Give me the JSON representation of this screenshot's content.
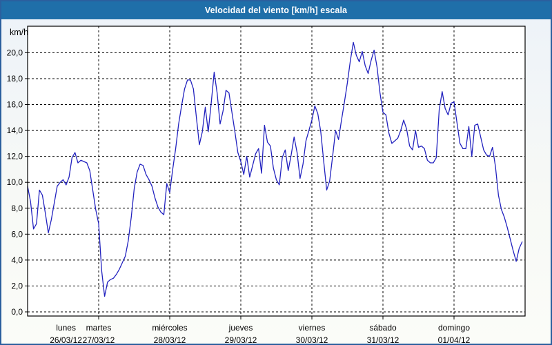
{
  "title": "Velocidad del viento [km/h] escala",
  "colors": {
    "title_bar": "#1f6fa9",
    "window_border": "#2b5f9e",
    "line": "#2222bf",
    "grid": "#000000",
    "plot_background": "#ffffff",
    "page_background": "#f2f5f7"
  },
  "chart_data": {
    "type": "line",
    "title": "Velocidad del viento [km/h] escala",
    "y_axis": {
      "unit": "km/h",
      "min": 0,
      "max": 22,
      "ticks": [
        {
          "label": "20,0",
          "value": 20
        },
        {
          "label": "18,0",
          "value": 18
        },
        {
          "label": "16,0",
          "value": 16
        },
        {
          "label": "14,0",
          "value": 14
        },
        {
          "label": "12,0",
          "value": 12
        },
        {
          "label": "10,0",
          "value": 10
        },
        {
          "label": "8,0",
          "value": 8
        },
        {
          "label": "6,0",
          "value": 6
        },
        {
          "label": "4,0",
          "value": 4
        },
        {
          "label": "2,0",
          "value": 2
        },
        {
          "label": "0,0",
          "value": 0
        }
      ],
      "grid": "dashed"
    },
    "x_axis": {
      "days": [
        {
          "name": "lunes",
          "date": "26/03/12"
        },
        {
          "name": "martes",
          "date": "27/03/12"
        },
        {
          "name": "miércoles",
          "date": "28/03/12"
        },
        {
          "name": "jueves",
          "date": "29/03/12"
        },
        {
          "name": "viernes",
          "date": "30/03/12"
        },
        {
          "name": "sábado",
          "date": "31/03/12"
        },
        {
          "name": "domingo",
          "date": "01/04/12"
        }
      ],
      "grid": "dashed",
      "points_per_day": 24
    },
    "series": [
      {
        "name": "Velocidad del viento",
        "unit": "km/h",
        "values_kmh": [
          9.7,
          8.5,
          6.4,
          6.8,
          9.4,
          9.0,
          7.6,
          6.1,
          7.1,
          8.4,
          9.7,
          10.0,
          10.2,
          9.8,
          10.4,
          11.9,
          12.3,
          11.5,
          11.7,
          11.6,
          11.5,
          10.9,
          9.4,
          7.9,
          6.8,
          3.2,
          1.2,
          2.3,
          2.5,
          2.6,
          2.9,
          3.3,
          3.8,
          4.3,
          5.5,
          7.3,
          9.5,
          10.8,
          11.4,
          11.3,
          10.6,
          10.2,
          9.7,
          8.8,
          8.1,
          7.7,
          7.5,
          9.9,
          9.2,
          11.0,
          12.6,
          14.5,
          15.9,
          17.2,
          17.9,
          17.9,
          17.2,
          15.0,
          12.9,
          13.9,
          15.8,
          13.9,
          16.1,
          18.5,
          16.9,
          14.5,
          15.5,
          17.1,
          16.9,
          15.4,
          13.9,
          12.3,
          11.6,
          10.6,
          12.0,
          10.4,
          11.3,
          12.2,
          12.6,
          10.7,
          14.4,
          13.1,
          12.8,
          11.1,
          10.2,
          9.8,
          11.9,
          12.5,
          10.9,
          12.1,
          13.5,
          12.3,
          10.3,
          11.4,
          13.2,
          14.0,
          14.8,
          15.9,
          15.3,
          13.9,
          11.6,
          9.4,
          10.1,
          12.0,
          14.0,
          13.3,
          14.8,
          16.2,
          17.7,
          19.4,
          20.8,
          19.8,
          19.3,
          20.1,
          19.0,
          18.4,
          19.4,
          20.2,
          18.9,
          16.9,
          15.4,
          15.2,
          13.8,
          13.0,
          13.2,
          13.4,
          14.0,
          14.8,
          14.1,
          12.8,
          12.5,
          14.0,
          12.7,
          12.8,
          12.6,
          11.7,
          11.5,
          11.5,
          11.9,
          15.6,
          17.0,
          15.7,
          15.2,
          16.1,
          16.2,
          14.6,
          13.0,
          12.6,
          12.6,
          14.3,
          12.0,
          14.4,
          14.5,
          13.5,
          12.5,
          12.1,
          12.0,
          12.7,
          11.2,
          9.0,
          7.9,
          7.3,
          6.5,
          5.6,
          4.7,
          3.9,
          4.9,
          5.4
        ]
      }
    ],
    "legend": "none"
  }
}
